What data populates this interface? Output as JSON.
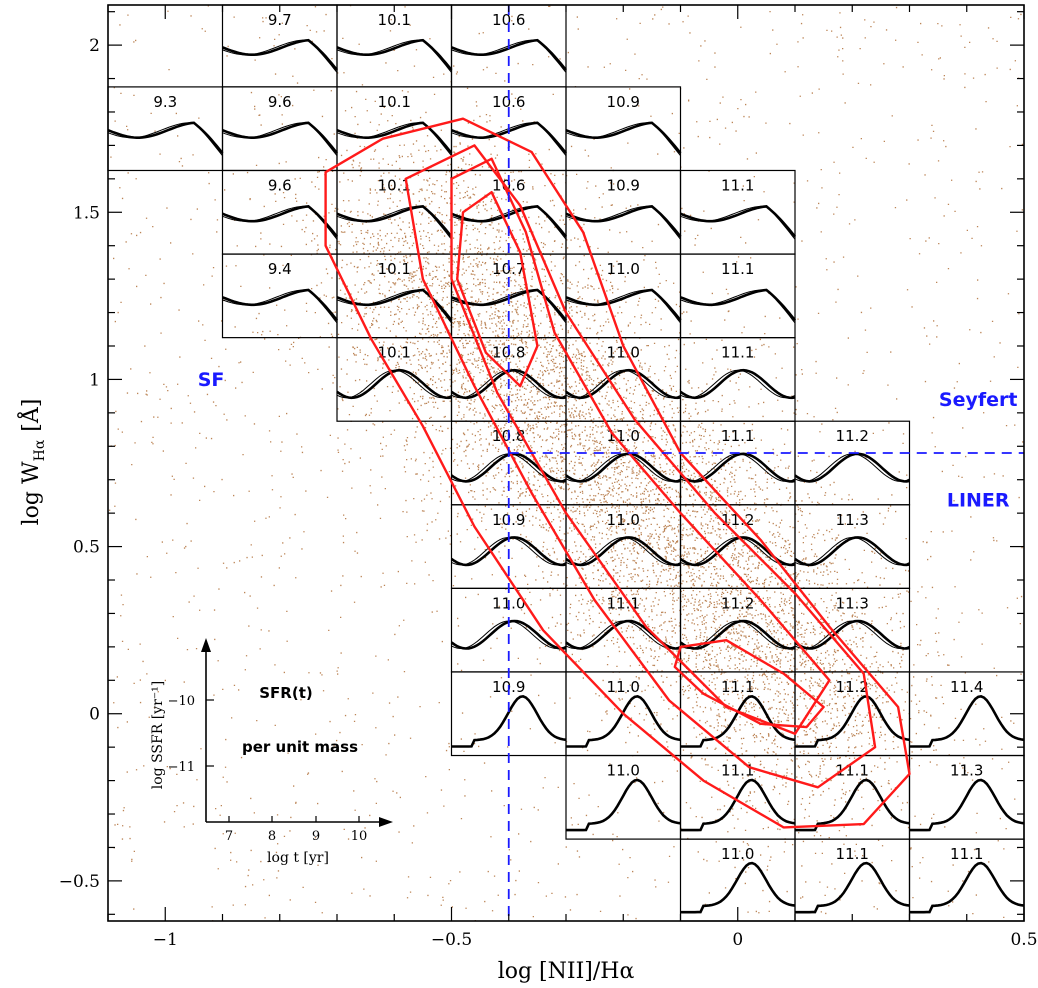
{
  "chart_data": {
    "type": "scatter",
    "title": "",
    "xlabel": "log [NII]/Hα",
    "ylabel_main": "log W",
    "ylabel_sub": "Hα",
    "ylabel_unit": "[Å]",
    "xlim": [
      -1.1,
      0.5
    ],
    "ylim": [
      -0.62,
      2.12
    ],
    "x_ticks": [
      -1,
      -0.5,
      0,
      0.5
    ],
    "x_tick_labels": [
      "−1",
      "−0.5",
      "0",
      "0.5"
    ],
    "y_ticks": [
      -0.5,
      0,
      0.5,
      1,
      1.5,
      2
    ],
    "y_tick_labels": [
      "−0.5",
      "0",
      "0.5",
      "1",
      "1.5",
      "2"
    ],
    "grid": false,
    "divider_x": -0.4,
    "divider_y": 0.78,
    "regions": [
      {
        "label": "SF",
        "x": -0.92,
        "y": 0.98
      },
      {
        "label": "Seyfert",
        "x": 0.42,
        "y": 0.92
      },
      {
        "label": "LINER",
        "x": 0.42,
        "y": 0.62
      }
    ],
    "cells": [
      {
        "x0": -0.9,
        "x1": -0.7,
        "y0": 1.875,
        "y1": 2.12,
        "mass": "9.7"
      },
      {
        "x0": -0.7,
        "x1": -0.5,
        "y0": 1.875,
        "y1": 2.12,
        "mass": "10.1"
      },
      {
        "x0": -0.5,
        "x1": -0.3,
        "y0": 1.875,
        "y1": 2.12,
        "mass": "10.6"
      },
      {
        "x0": -1.1,
        "x1": -0.9,
        "y0": 1.625,
        "y1": 1.875,
        "mass": "9.3"
      },
      {
        "x0": -0.9,
        "x1": -0.7,
        "y0": 1.625,
        "y1": 1.875,
        "mass": "9.6"
      },
      {
        "x0": -0.7,
        "x1": -0.5,
        "y0": 1.625,
        "y1": 1.875,
        "mass": "10.1"
      },
      {
        "x0": -0.5,
        "x1": -0.3,
        "y0": 1.625,
        "y1": 1.875,
        "mass": "10.6"
      },
      {
        "x0": -0.3,
        "x1": -0.1,
        "y0": 1.625,
        "y1": 1.875,
        "mass": "10.9"
      },
      {
        "x0": -0.9,
        "x1": -0.7,
        "y0": 1.375,
        "y1": 1.625,
        "mass": "9.6"
      },
      {
        "x0": -0.7,
        "x1": -0.5,
        "y0": 1.375,
        "y1": 1.625,
        "mass": "10.1"
      },
      {
        "x0": -0.5,
        "x1": -0.3,
        "y0": 1.375,
        "y1": 1.625,
        "mass": "10.6"
      },
      {
        "x0": -0.3,
        "x1": -0.1,
        "y0": 1.375,
        "y1": 1.625,
        "mass": "10.9"
      },
      {
        "x0": -0.1,
        "x1": 0.1,
        "y0": 1.375,
        "y1": 1.625,
        "mass": "11.1"
      },
      {
        "x0": -0.9,
        "x1": -0.7,
        "y0": 1.125,
        "y1": 1.375,
        "mass": "9.4"
      },
      {
        "x0": -0.7,
        "x1": -0.5,
        "y0": 1.125,
        "y1": 1.375,
        "mass": "10.1"
      },
      {
        "x0": -0.5,
        "x1": -0.3,
        "y0": 1.125,
        "y1": 1.375,
        "mass": "10.7"
      },
      {
        "x0": -0.3,
        "x1": -0.1,
        "y0": 1.125,
        "y1": 1.375,
        "mass": "11.0"
      },
      {
        "x0": -0.1,
        "x1": 0.1,
        "y0": 1.125,
        "y1": 1.375,
        "mass": "11.1"
      },
      {
        "x0": -0.7,
        "x1": -0.5,
        "y0": 0.875,
        "y1": 1.125,
        "mass": "10.1"
      },
      {
        "x0": -0.5,
        "x1": -0.3,
        "y0": 0.875,
        "y1": 1.125,
        "mass": "10.8"
      },
      {
        "x0": -0.3,
        "x1": -0.1,
        "y0": 0.875,
        "y1": 1.125,
        "mass": "11.0"
      },
      {
        "x0": -0.1,
        "x1": 0.1,
        "y0": 0.875,
        "y1": 1.125,
        "mass": "11.1"
      },
      {
        "x0": -0.5,
        "x1": -0.3,
        "y0": 0.625,
        "y1": 0.875,
        "mass": "10.8"
      },
      {
        "x0": -0.3,
        "x1": -0.1,
        "y0": 0.625,
        "y1": 0.875,
        "mass": "11.0"
      },
      {
        "x0": -0.1,
        "x1": 0.1,
        "y0": 0.625,
        "y1": 0.875,
        "mass": "11.1"
      },
      {
        "x0": 0.1,
        "x1": 0.3,
        "y0": 0.625,
        "y1": 0.875,
        "mass": "11.2"
      },
      {
        "x0": -0.5,
        "x1": -0.3,
        "y0": 0.375,
        "y1": 0.625,
        "mass": "10.9"
      },
      {
        "x0": -0.3,
        "x1": -0.1,
        "y0": 0.375,
        "y1": 0.625,
        "mass": "11.0"
      },
      {
        "x0": -0.1,
        "x1": 0.1,
        "y0": 0.375,
        "y1": 0.625,
        "mass": "11.2"
      },
      {
        "x0": 0.1,
        "x1": 0.3,
        "y0": 0.375,
        "y1": 0.625,
        "mass": "11.3"
      },
      {
        "x0": -0.5,
        "x1": -0.3,
        "y0": 0.125,
        "y1": 0.375,
        "mass": "11.0"
      },
      {
        "x0": -0.3,
        "x1": -0.1,
        "y0": 0.125,
        "y1": 0.375,
        "mass": "11.1"
      },
      {
        "x0": -0.1,
        "x1": 0.1,
        "y0": 0.125,
        "y1": 0.375,
        "mass": "11.2"
      },
      {
        "x0": 0.1,
        "x1": 0.3,
        "y0": 0.125,
        "y1": 0.375,
        "mass": "11.3"
      },
      {
        "x0": -0.5,
        "x1": -0.3,
        "y0": -0.125,
        "y1": 0.125,
        "mass": "10.9"
      },
      {
        "x0": -0.3,
        "x1": -0.1,
        "y0": -0.125,
        "y1": 0.125,
        "mass": "11.0"
      },
      {
        "x0": -0.1,
        "x1": 0.1,
        "y0": -0.125,
        "y1": 0.125,
        "mass": "11.1"
      },
      {
        "x0": 0.1,
        "x1": 0.3,
        "y0": -0.125,
        "y1": 0.125,
        "mass": "11.2"
      },
      {
        "x0": 0.3,
        "x1": 0.5,
        "y0": -0.125,
        "y1": 0.125,
        "mass": "11.4"
      },
      {
        "x0": -0.3,
        "x1": -0.1,
        "y0": -0.375,
        "y1": -0.125,
        "mass": "11.0"
      },
      {
        "x0": -0.1,
        "x1": 0.1,
        "y0": -0.375,
        "y1": -0.125,
        "mass": "11.1"
      },
      {
        "x0": 0.1,
        "x1": 0.3,
        "y0": -0.375,
        "y1": -0.125,
        "mass": "11.1"
      },
      {
        "x0": 0.3,
        "x1": 0.5,
        "y0": -0.375,
        "y1": -0.125,
        "mass": "11.3"
      },
      {
        "x0": -0.1,
        "x1": 0.1,
        "y0": -0.62,
        "y1": -0.375,
        "mass": "11.0"
      },
      {
        "x0": 0.1,
        "x1": 0.3,
        "y0": -0.62,
        "y1": -0.375,
        "mass": "11.1"
      },
      {
        "x0": 0.3,
        "x1": 0.5,
        "y0": -0.62,
        "y1": -0.375,
        "mass": "11.1"
      }
    ],
    "contours": [
      [
        [
          -0.72,
          1.62
        ],
        [
          -0.62,
          1.72
        ],
        [
          -0.48,
          1.78
        ],
        [
          -0.36,
          1.68
        ],
        [
          -0.27,
          1.44
        ],
        [
          -0.2,
          1.1
        ],
        [
          -0.1,
          0.78
        ],
        [
          0.04,
          0.52
        ],
        [
          0.16,
          0.26
        ],
        [
          0.28,
          0.02
        ],
        [
          0.3,
          -0.18
        ],
        [
          0.22,
          -0.33
        ],
        [
          0.08,
          -0.34
        ],
        [
          -0.06,
          -0.2
        ],
        [
          -0.2,
          0.0
        ],
        [
          -0.34,
          0.25
        ],
        [
          -0.46,
          0.56
        ],
        [
          -0.55,
          0.86
        ],
        [
          -0.64,
          1.12
        ],
        [
          -0.72,
          1.4
        ]
      ],
      [
        [
          -0.58,
          1.6
        ],
        [
          -0.46,
          1.7
        ],
        [
          -0.38,
          1.52
        ],
        [
          -0.3,
          1.2
        ],
        [
          -0.18,
          0.88
        ],
        [
          -0.04,
          0.6
        ],
        [
          0.1,
          0.36
        ],
        [
          0.22,
          0.12
        ],
        [
          0.24,
          -0.1
        ],
        [
          0.14,
          -0.22
        ],
        [
          0.02,
          -0.16
        ],
        [
          -0.12,
          0.04
        ],
        [
          -0.25,
          0.34
        ],
        [
          -0.36,
          0.66
        ],
        [
          -0.46,
          0.98
        ],
        [
          -0.55,
          1.3
        ]
      ],
      [
        [
          -0.5,
          1.6
        ],
        [
          -0.43,
          1.66
        ],
        [
          -0.37,
          1.44
        ],
        [
          -0.32,
          1.14
        ],
        [
          -0.22,
          0.84
        ],
        [
          -0.1,
          0.6
        ],
        [
          0.04,
          0.34
        ],
        [
          0.16,
          0.1
        ],
        [
          0.1,
          -0.06
        ],
        [
          -0.02,
          0.02
        ],
        [
          -0.16,
          0.26
        ],
        [
          -0.3,
          0.6
        ],
        [
          -0.42,
          0.96
        ],
        [
          -0.5,
          1.3
        ]
      ],
      [
        [
          -0.48,
          1.5
        ],
        [
          -0.43,
          1.56
        ],
        [
          -0.38,
          1.38
        ],
        [
          -0.35,
          1.1
        ],
        [
          -0.38,
          0.98
        ],
        [
          -0.44,
          1.08
        ],
        [
          -0.49,
          1.3
        ]
      ],
      [
        [
          -0.1,
          0.2
        ],
        [
          -0.02,
          0.22
        ],
        [
          0.08,
          0.12
        ],
        [
          0.15,
          0.02
        ],
        [
          0.12,
          -0.04
        ],
        [
          0.04,
          -0.03
        ],
        [
          -0.06,
          0.06
        ],
        [
          -0.11,
          0.14
        ]
      ]
    ]
  },
  "inset": {
    "title": "SFR(t)",
    "subtitle": "per unit mass",
    "ylabel": "log SSFR [yr⁻¹]",
    "xlabel": "log t [yr]",
    "x_ticks": [
      "7",
      "8",
      "9",
      "10"
    ],
    "y_ticks": [
      "−10",
      "−11"
    ]
  },
  "colors": {
    "points": "#b0703a",
    "contours": "#ff1a1a",
    "dividers": "#1a1aff",
    "frame": "#000000"
  }
}
